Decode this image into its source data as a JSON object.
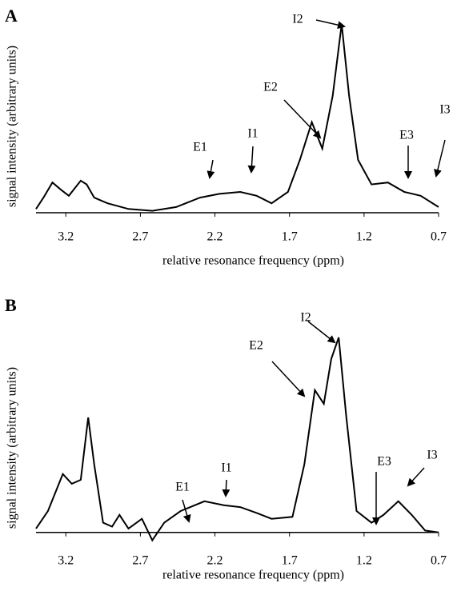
{
  "chart_data": [
    {
      "type": "line",
      "panel": "A",
      "color": "#000000",
      "xlabel": "relative resonance frequency (ppm)",
      "ylabel": "signal intensity (arbitrary units)",
      "xlim": [
        3.4,
        0.7
      ],
      "ylim": [
        0,
        100
      ],
      "xticks": [
        3.2,
        2.7,
        2.2,
        1.7,
        1.2,
        0.7
      ],
      "x": [
        3.4,
        3.35,
        3.29,
        3.23,
        3.18,
        3.1,
        3.06,
        3.01,
        2.92,
        2.78,
        2.62,
        2.46,
        2.3,
        2.17,
        2.03,
        1.92,
        1.82,
        1.71,
        1.63,
        1.55,
        1.48,
        1.41,
        1.35,
        1.3,
        1.24,
        1.15,
        1.04,
        0.93,
        0.82,
        0.7
      ],
      "values": [
        2,
        8,
        16,
        12,
        9,
        17,
        15,
        8,
        5,
        2,
        1,
        3,
        8,
        10,
        11,
        9,
        5,
        11,
        28,
        48,
        34,
        62,
        100,
        62,
        28,
        15,
        16,
        11,
        9,
        3
      ],
      "annotations": [
        {
          "text": "E1"
        },
        {
          "text": "I1"
        },
        {
          "text": "E2"
        },
        {
          "text": "I2"
        },
        {
          "text": "E3"
        },
        {
          "text": "I3"
        }
      ]
    },
    {
      "type": "line",
      "panel": "B",
      "color": "#000000",
      "xlabel": "relative resonance frequency (ppm)",
      "ylabel": "signal intensity (arbitrary units)",
      "xlim": [
        3.4,
        0.7
      ],
      "ylim": [
        -5,
        100
      ],
      "xticks": [
        3.2,
        2.7,
        2.2,
        1.7,
        1.2,
        0.7
      ],
      "x": [
        3.4,
        3.32,
        3.22,
        3.16,
        3.1,
        3.05,
        3.01,
        2.95,
        2.89,
        2.84,
        2.78,
        2.69,
        2.62,
        2.54,
        2.43,
        2.27,
        2.14,
        2.03,
        1.92,
        1.82,
        1.68,
        1.6,
        1.53,
        1.47,
        1.42,
        1.37,
        1.32,
        1.25,
        1.15,
        1.07,
        0.97,
        0.88,
        0.79,
        0.7
      ],
      "values": [
        2,
        11,
        30,
        25,
        27,
        59,
        35,
        5,
        3,
        9,
        2,
        7,
        -4,
        5,
        11,
        16,
        14,
        13,
        10,
        7,
        8,
        35,
        73,
        66,
        89,
        100,
        60,
        11,
        5,
        9,
        16,
        9,
        1,
        0
      ],
      "annotations": [
        {
          "text": "E1"
        },
        {
          "text": "I1"
        },
        {
          "text": "E2"
        },
        {
          "text": "I2"
        },
        {
          "text": "E3"
        },
        {
          "text": "I3"
        }
      ]
    }
  ]
}
